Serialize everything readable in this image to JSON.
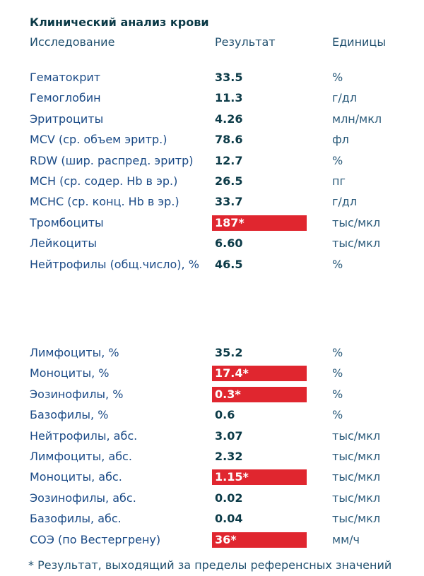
{
  "title": "Клинический анализ крови",
  "header": {
    "name": "Исследование",
    "result": "Результат",
    "unit": "Единицы"
  },
  "groups": [
    [
      {
        "name": "Гематокрит",
        "result": "33.5",
        "unit": "%",
        "flagged": false
      },
      {
        "name": "Гемоглобин",
        "result": "11.3",
        "unit": "г/дл",
        "flagged": false
      },
      {
        "name": "Эритроциты",
        "result": "4.26",
        "unit": "млн/мкл",
        "flagged": false
      },
      {
        "name": "MCV (ср. объем эритр.)",
        "result": "78.6",
        "unit": "фл",
        "flagged": false
      },
      {
        "name": "RDW (шир. распред. эритр)",
        "result": "12.7",
        "unit": "%",
        "flagged": false
      },
      {
        "name": "MCH (ср. содер. Hb в эр.)",
        "result": "26.5",
        "unit": "пг",
        "flagged": false
      },
      {
        "name": "MCHC (ср. конц. Hb в эр.)",
        "result": "33.7",
        "unit": "г/дл",
        "flagged": false
      },
      {
        "name": "Тромбоциты",
        "result": "187*",
        "unit": "тыс/мкл",
        "flagged": true
      },
      {
        "name": "Лейкоциты",
        "result": "6.60",
        "unit": "тыс/мкл",
        "flagged": false
      },
      {
        "name": "Нейтрофилы (общ.число), %",
        "result": "46.5",
        "unit": "%",
        "flagged": false
      }
    ],
    [
      {
        "name": "Лимфоциты, %",
        "result": "35.2",
        "unit": "%",
        "flagged": false
      },
      {
        "name": "Моноциты, %",
        "result": "17.4*",
        "unit": "%",
        "flagged": true
      },
      {
        "name": "Эозинофилы, %",
        "result": "0.3*",
        "unit": "%",
        "flagged": true
      },
      {
        "name": "Базофилы, %",
        "result": "0.6",
        "unit": "%",
        "flagged": false
      },
      {
        "name": "Нейтрофилы, абс.",
        "result": "3.07",
        "unit": "тыс/мкл",
        "flagged": false
      },
      {
        "name": "Лимфоциты, абс.",
        "result": "2.32",
        "unit": "тыс/мкл",
        "flagged": false
      },
      {
        "name": "Моноциты, абс.",
        "result": "1.15*",
        "unit": "тыс/мкл",
        "flagged": true
      },
      {
        "name": "Эозинофилы, абс.",
        "result": "0.02",
        "unit": "тыс/мкл",
        "flagged": false
      },
      {
        "name": "Базофилы, абс.",
        "result": "0.04",
        "unit": "тыс/мкл",
        "flagged": false
      },
      {
        "name": "СОЭ (по Вестергрену)",
        "result": "36*",
        "unit": "мм/ч",
        "flagged": true
      }
    ]
  ],
  "footnote": "* Результат, выходящий за пределы референсных значений"
}
